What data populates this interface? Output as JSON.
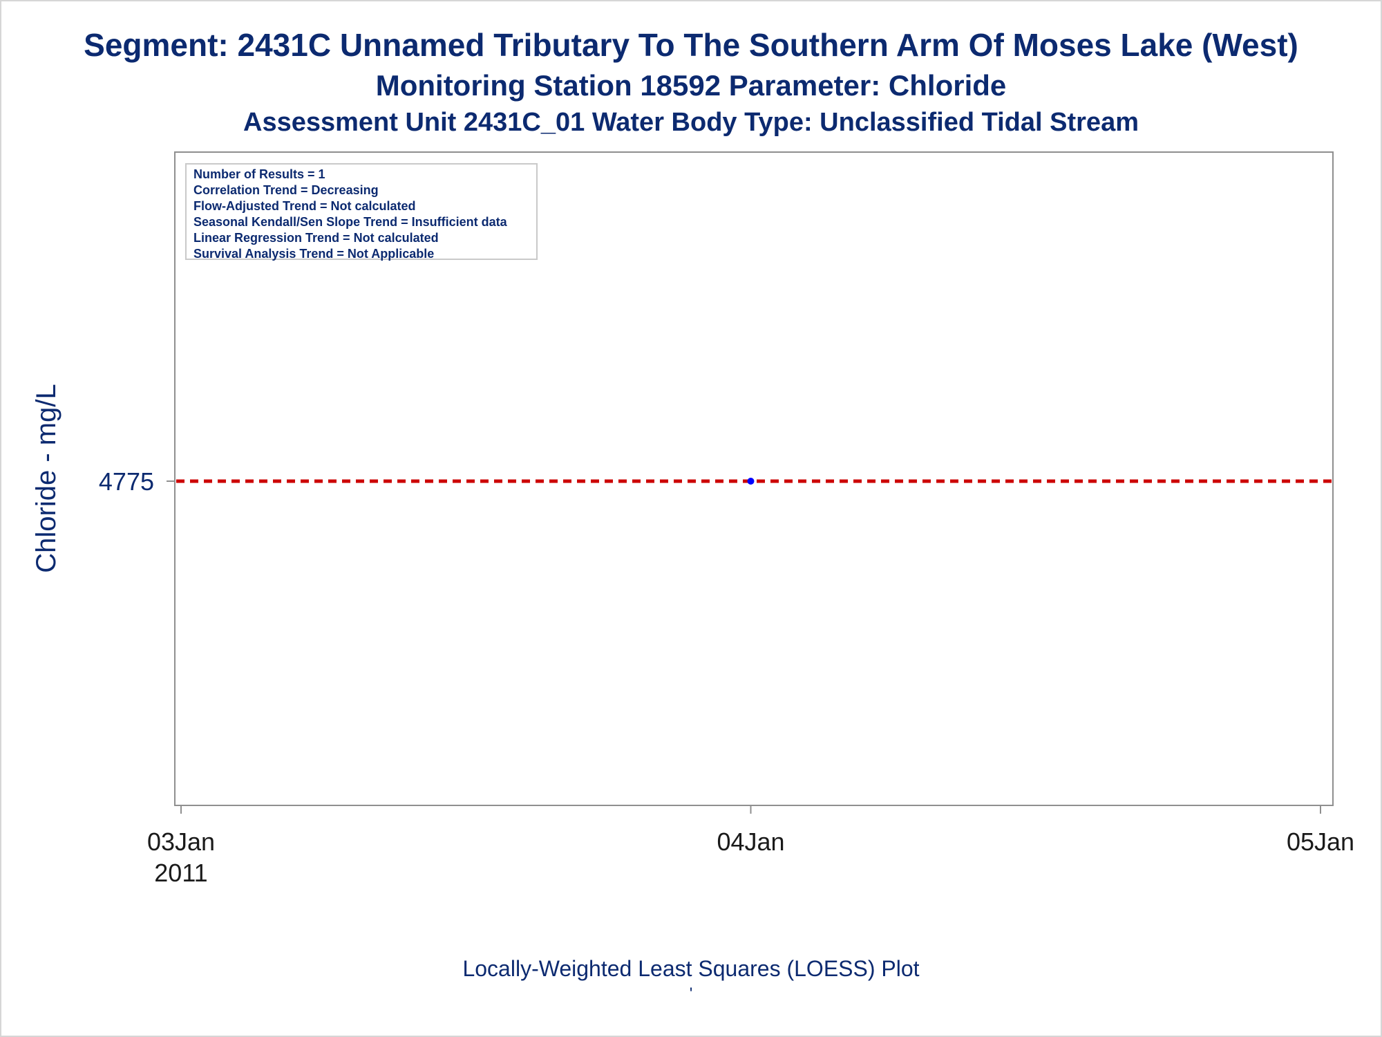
{
  "chart_data": {
    "type": "scatter",
    "title": "Segment: 2431C  Unnamed Tributary To The Southern Arm Of Moses Lake (West)",
    "subtitle1": "Monitoring Station 18592 Parameter: Chloride",
    "subtitle2": "Assessment Unit 2431C_01   Water Body Type: Unclassified Tidal Stream",
    "ylabel": "Chloride - mg/L",
    "xlabel": "Locally-Weighted Least Squares (LOESS) Plot",
    "footnote": "'",
    "x_range": [
      "2011-01-03",
      "2011-01-05"
    ],
    "x_ticks": [
      {
        "date": "2011-01-03",
        "label": "03Jan",
        "sublabel": "2011"
      },
      {
        "date": "2011-01-04",
        "label": "04Jan",
        "sublabel": ""
      },
      {
        "date": "2011-01-05",
        "label": "05Jan",
        "sublabel": ""
      }
    ],
    "y_ticks": [
      4775
    ],
    "series": [
      {
        "type": "scatter",
        "x": [
          "2011-01-04"
        ],
        "y": [
          4775
        ],
        "color": "#0000ff"
      },
      {
        "type": "line",
        "style": "dashed",
        "x": [
          "2011-01-03",
          "2011-01-05"
        ],
        "y": [
          4775,
          4775
        ],
        "color": "#cc0000"
      }
    ],
    "stats_box": [
      "Number of Results = 1",
      "Correlation Trend = Decreasing",
      "Flow-Adjusted Trend = Not calculated",
      "Seasonal Kendall/Sen Slope Trend = Insufficient data",
      "Linear Regression Trend = Not calculated",
      "Survival Analysis Trend = Not Applicable"
    ],
    "legend": "top-left",
    "grid": false
  }
}
